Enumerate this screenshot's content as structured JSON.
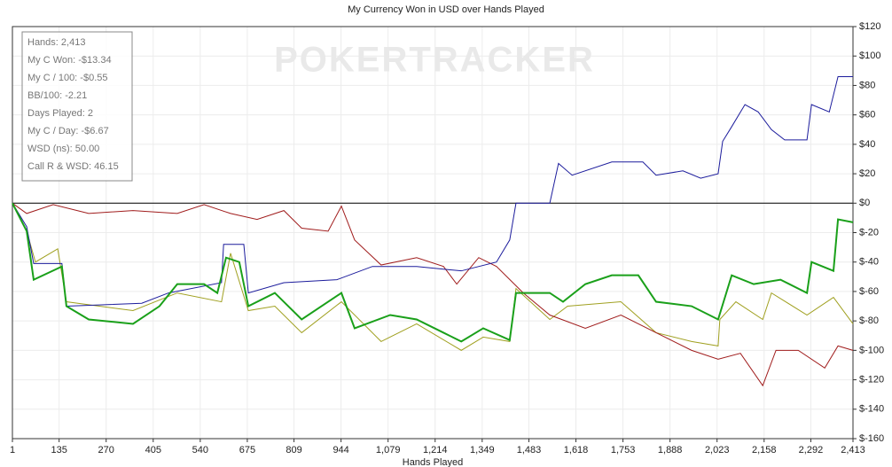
{
  "chart_data": {
    "type": "line",
    "title": "My Currency Won in USD over Hands Played",
    "x_label": "Hands Played",
    "watermark": "POKERTRACKER",
    "info_box": [
      "Hands: 2,413",
      "My C Won: -$13.34",
      "My C / 100: -$0.55",
      "BB/100: -2.21",
      "Days Played: 2",
      "My C / Day: -$6.67",
      "WSD (ns): 50.00",
      "Call R & WSD: 46.15"
    ],
    "xlim": [
      1,
      2413
    ],
    "xticks": [
      1,
      135,
      270,
      405,
      540,
      675,
      809,
      944,
      {
        "value": 1079,
        "label": "1,079"
      },
      {
        "value": 1214,
        "label": "1,214"
      },
      {
        "value": 1349,
        "label": "1,349"
      },
      {
        "value": 1483,
        "label": "1,483"
      },
      {
        "value": 1618,
        "label": "1,618"
      },
      {
        "value": 1753,
        "label": "1,753"
      },
      {
        "value": 1888,
        "label": "1,888"
      },
      {
        "value": 2023,
        "label": "2,023"
      },
      {
        "value": 2158,
        "label": "2,158"
      },
      {
        "value": 2292,
        "label": "2,292"
      },
      {
        "value": 2413,
        "label": "2,413"
      }
    ],
    "ylim": [
      -160,
      120
    ],
    "yticks": [
      {
        "value": -160,
        "label": "$-160"
      },
      {
        "value": -140,
        "label": "$-140"
      },
      {
        "value": -120,
        "label": "$-120"
      },
      {
        "value": -100,
        "label": "$-100"
      },
      {
        "value": -80,
        "label": "$-80"
      },
      {
        "value": -60,
        "label": "$-60"
      },
      {
        "value": -40,
        "label": "$-40"
      },
      {
        "value": -20,
        "label": "$-20"
      },
      {
        "value": 0,
        "label": "$0"
      },
      {
        "value": 20,
        "label": "$20"
      },
      {
        "value": 40,
        "label": "$40"
      },
      {
        "value": 60,
        "label": "$60"
      },
      {
        "value": 80,
        "label": "$80"
      },
      {
        "value": 100,
        "label": "$100"
      },
      {
        "value": 120,
        "label": "$120"
      }
    ],
    "grid": true,
    "y_axis_side": "right",
    "series": [
      {
        "color": "#a0a020",
        "width": 1,
        "x": [
          1,
          42,
          67,
          131,
          156,
          347,
          474,
          601,
          627,
          678,
          754,
          831,
          945,
          1059,
          1161,
          1289,
          1352,
          1428,
          1446,
          1543,
          1594,
          1747,
          1848,
          1950,
          2026,
          2031,
          2077,
          2154,
          2179,
          2281,
          2357,
          2413
        ],
        "values": [
          0,
          -19,
          -40,
          -31,
          -67,
          -73,
          -61,
          -67,
          -34,
          -73,
          -70,
          -88,
          -67,
          -94,
          -82,
          -100,
          -91,
          -94,
          -58,
          -79,
          -70,
          -67,
          -88,
          -94,
          -97,
          -79,
          -67,
          -79,
          -61,
          -76,
          -64,
          -82
        ]
      },
      {
        "color": "#a01c1c",
        "width": 1,
        "x": [
          1,
          42,
          118,
          220,
          347,
          474,
          551,
          627,
          703,
          780,
          831,
          907,
          945,
          983,
          1059,
          1161,
          1238,
          1276,
          1339,
          1390,
          1467,
          1543,
          1645,
          1747,
          1848,
          1950,
          2026,
          2090,
          2154,
          2192,
          2256,
          2332,
          2370,
          2413
        ],
        "values": [
          0,
          -7,
          -1,
          -7,
          -5,
          -7,
          -1,
          -7,
          -11,
          -5,
          -17,
          -19,
          -2,
          -25,
          -42,
          -37,
          -43,
          -55,
          -37,
          -43,
          -61,
          -76,
          -85,
          -76,
          -88,
          -100,
          -106,
          -102,
          -124,
          -100,
          -100,
          -112,
          -97,
          -100
        ]
      },
      {
        "color": "#1c1c9c",
        "width": 1,
        "x": [
          1,
          42,
          62,
          143,
          156,
          372,
          449,
          601,
          607,
          665,
          678,
          780,
          932,
          1034,
          1161,
          1289,
          1390,
          1428,
          1446,
          1543,
          1568,
          1607,
          1721,
          1810,
          1848,
          1925,
          1976,
          2026,
          2039,
          2065,
          2103,
          2141,
          2179,
          2217,
          2281,
          2294,
          2345,
          2370,
          2413
        ],
        "values": [
          0,
          -16,
          -41,
          -41,
          -70,
          -68,
          -61,
          -54,
          -28,
          -28,
          -61,
          -54,
          -52,
          -43,
          -43,
          -46,
          -40,
          -25,
          0,
          0,
          27,
          19,
          28,
          28,
          19,
          22,
          17,
          20,
          42,
          52,
          67,
          62,
          50,
          43,
          43,
          67,
          62,
          86,
          86
        ]
      },
      {
        "color": "#1aa01a",
        "width": 2,
        "x": [
          1,
          42,
          62,
          143,
          156,
          220,
          347,
          423,
          474,
          551,
          589,
          614,
          652,
          678,
          754,
          831,
          945,
          983,
          1085,
          1161,
          1238,
          1289,
          1352,
          1428,
          1446,
          1543,
          1581,
          1645,
          1721,
          1797,
          1848,
          1950,
          2026,
          2065,
          2128,
          2205,
          2281,
          2294,
          2357,
          2370,
          2413
        ],
        "values": [
          0,
          -19,
          -52,
          -43,
          -70,
          -79,
          -82,
          -70,
          -55,
          -55,
          -61,
          -37,
          -40,
          -70,
          -61,
          -79,
          -61,
          -85,
          -76,
          -79,
          -88,
          -94,
          -85,
          -93,
          -61,
          -61,
          -67,
          -55,
          -49,
          -49,
          -67,
          -70,
          -79,
          -49,
          -55,
          -52,
          -61,
          -40,
          -46,
          -11,
          -13
        ]
      }
    ]
  }
}
